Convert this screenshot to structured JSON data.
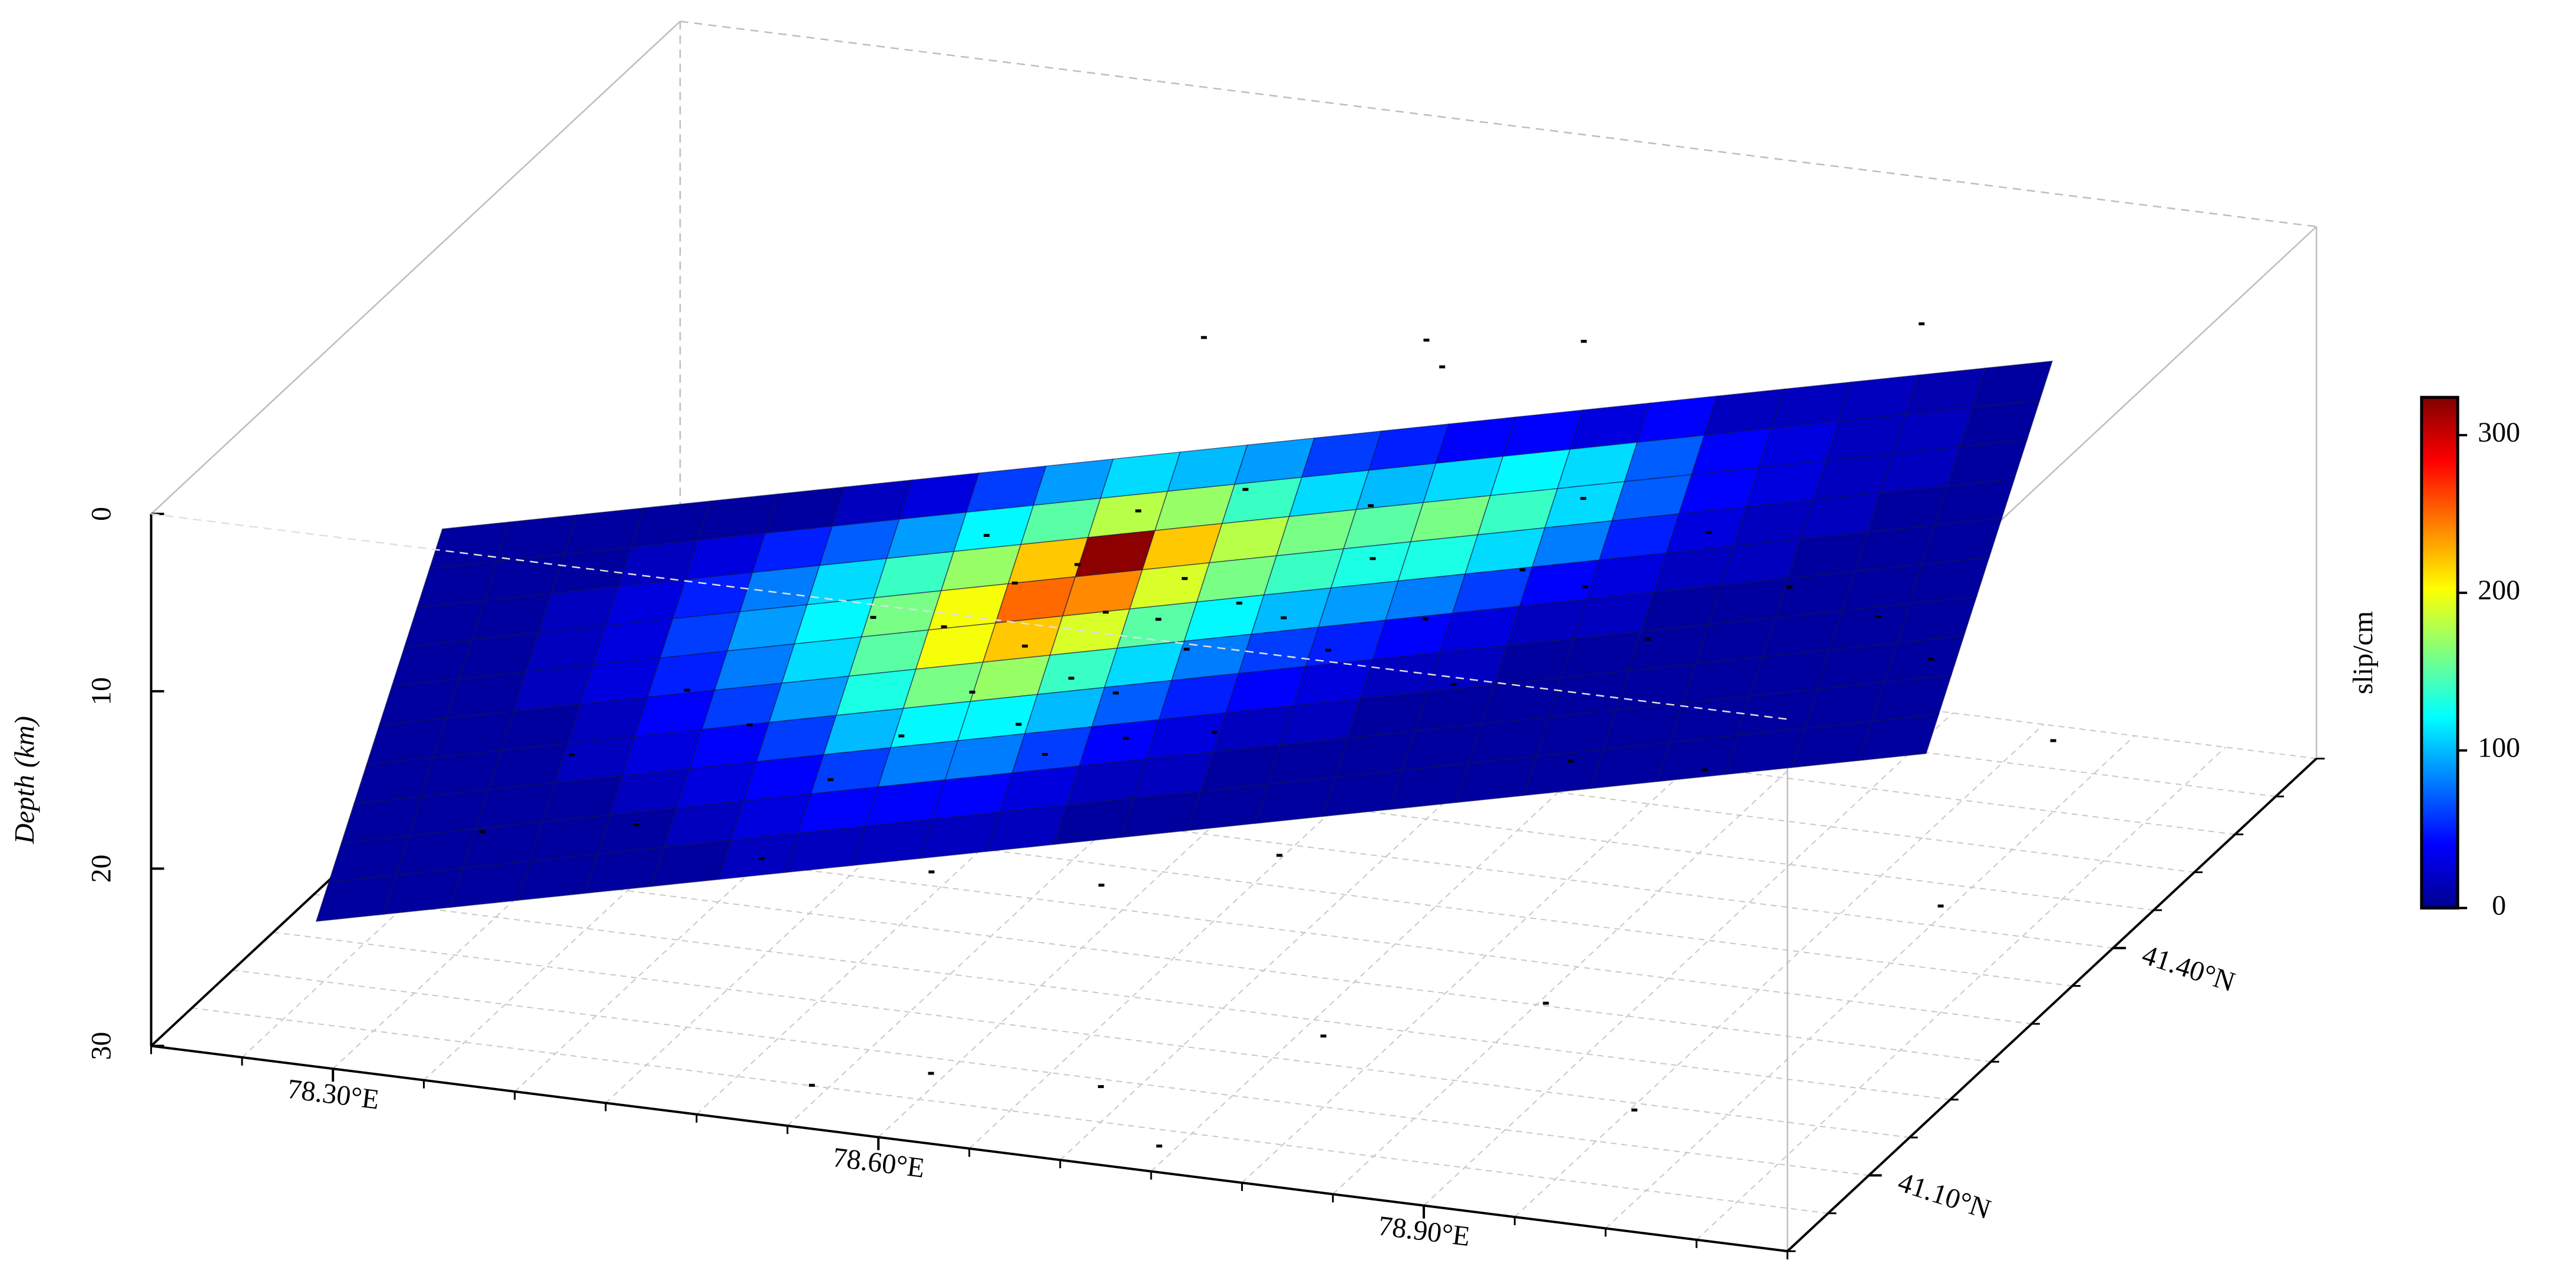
{
  "chart_data": {
    "type": "surface3d",
    "zlabel": "Depth (km)",
    "zlim": [
      0,
      30
    ],
    "zticks": [
      0,
      10,
      20,
      30
    ],
    "xlim": [
      78.2,
      79.1
    ],
    "xticks": [
      {
        "value": 78.3,
        "label": "78.30°E"
      },
      {
        "value": 78.6,
        "label": "78.60°E"
      },
      {
        "value": 78.9,
        "label": "78.90°E"
      }
    ],
    "xminorticks": [
      78.2,
      78.25,
      78.3,
      78.35,
      78.4,
      78.45,
      78.5,
      78.55,
      78.6,
      78.65,
      78.7,
      78.75,
      78.8,
      78.85,
      78.9,
      78.95,
      79.0,
      79.05,
      79.1
    ],
    "ylim": [
      41.0,
      41.65
    ],
    "yticks": [
      {
        "value": 41.1,
        "label": "41.10°N"
      },
      {
        "value": 41.4,
        "label": "41.40°N"
      }
    ],
    "yminorticks": [
      41.0,
      41.05,
      41.1,
      41.15,
      41.2,
      41.25,
      41.3,
      41.35,
      41.4,
      41.45,
      41.5,
      41.55,
      41.6,
      41.65
    ],
    "grid": true,
    "fault_corners": {
      "top_left": [
        78.349,
        41.025,
        0
      ],
      "top_right": [
        79.042,
        41.455,
        0
      ],
      "bottom_left": [
        78.289,
        41.004,
        22
      ],
      "bottom_right": [
        78.982,
        41.434,
        22
      ]
    },
    "slip": {
      "values": [
        [
          10,
          10,
          10,
          10,
          10,
          10,
          20,
          30,
          60,
          90,
          110,
          100,
          90,
          60,
          50,
          40,
          40,
          30,
          40,
          20,
          20,
          20,
          15,
          10
        ],
        [
          10,
          10,
          10,
          20,
          30,
          50,
          70,
          90,
          120,
          150,
          180,
          170,
          140,
          110,
          100,
          110,
          120,
          110,
          70,
          40,
          30,
          20,
          20,
          10
        ],
        [
          10,
          10,
          20,
          30,
          50,
          80,
          110,
          140,
          170,
          220,
          320,
          220,
          180,
          160,
          150,
          160,
          140,
          110,
          70,
          40,
          30,
          20,
          20,
          10
        ],
        [
          10,
          10,
          20,
          30,
          60,
          90,
          120,
          160,
          200,
          250,
          240,
          190,
          160,
          140,
          130,
          130,
          110,
          80,
          50,
          30,
          20,
          20,
          10,
          10
        ],
        [
          10,
          10,
          20,
          30,
          50,
          80,
          110,
          150,
          200,
          220,
          190,
          150,
          120,
          100,
          90,
          80,
          60,
          40,
          30,
          20,
          20,
          10,
          10,
          10
        ],
        [
          10,
          10,
          10,
          20,
          40,
          60,
          90,
          130,
          160,
          170,
          140,
          110,
          80,
          60,
          50,
          40,
          30,
          20,
          20,
          10,
          10,
          10,
          10,
          10
        ],
        [
          10,
          10,
          10,
          20,
          30,
          40,
          60,
          100,
          120,
          120,
          100,
          70,
          50,
          40,
          30,
          20,
          20,
          10,
          10,
          10,
          10,
          10,
          10,
          10
        ],
        [
          10,
          10,
          10,
          10,
          20,
          30,
          40,
          60,
          80,
          80,
          60,
          40,
          30,
          20,
          20,
          10,
          10,
          10,
          10,
          10,
          10,
          10,
          10,
          10
        ],
        [
          10,
          10,
          10,
          10,
          10,
          20,
          30,
          40,
          40,
          40,
          30,
          20,
          20,
          10,
          10,
          10,
          10,
          10,
          10,
          10,
          10,
          10,
          10,
          10
        ],
        [
          10,
          10,
          10,
          10,
          10,
          10,
          20,
          20,
          20,
          20,
          20,
          10,
          10,
          10,
          10,
          10,
          10,
          10,
          10,
          10,
          10,
          10,
          10,
          10
        ]
      ]
    },
    "colorbar": {
      "label": "slip/cm",
      "lim": [
        0,
        324
      ],
      "ticks": [
        0,
        100,
        200,
        300
      ],
      "colormap": "jet"
    },
    "aftershocks": {
      "color": "#000000",
      "lon": [
        78.62,
        78.64,
        78.66,
        78.6,
        78.63,
        78.67,
        78.7,
        78.58,
        78.61,
        78.65,
        78.68,
        78.72,
        78.56,
        78.59,
        78.55,
        78.62,
        78.66,
        78.74,
        78.78,
        78.82,
        78.85,
        78.8,
        78.88,
        78.76,
        78.9,
        78.94,
        78.7,
        78.52,
        78.48,
        78.45,
        78.53,
        78.57,
        78.64,
        78.69,
        78.75,
        78.84,
        78.98,
        79.0,
        78.92,
        78.86,
        78.5,
        78.58,
        78.66,
        78.74,
        78.44,
        78.4,
        78.36,
        78.74,
        78.8,
        78.6,
        78.95,
        78.7,
        78.7,
        78.8,
        78.62,
        78.9,
        78.55,
        79.05,
        78.98,
        78.75,
        79.0
      ],
      "lat": [
        41.2,
        41.19,
        41.21,
        41.18,
        41.17,
        41.22,
        41.22,
        41.16,
        41.15,
        41.18,
        41.2,
        41.23,
        41.17,
        41.19,
        41.14,
        41.16,
        41.17,
        41.24,
        41.27,
        41.3,
        41.31,
        41.26,
        41.32,
        41.25,
        41.35,
        41.36,
        41.19,
        41.12,
        41.11,
        41.1,
        41.15,
        41.2,
        41.23,
        41.25,
        41.27,
        41.33,
        41.38,
        41.4,
        41.3,
        41.27,
        41.08,
        41.11,
        41.14,
        41.18,
        41.06,
        41.07,
        41.05,
        41.38,
        41.42,
        41.4,
        41.5,
        41.45,
        41.05,
        41.1,
        41.02,
        41.15,
        41.03,
        41.3,
        41.08,
        41.01,
        41.55
      ],
      "depth": [
        6,
        8,
        9,
        10,
        11,
        7,
        8,
        12,
        13,
        12,
        10,
        9,
        9,
        7,
        14,
        15,
        14,
        11,
        10,
        8,
        9,
        13,
        12,
        6,
        7,
        10,
        14,
        16,
        13,
        11,
        8,
        5,
        4,
        3,
        4,
        5,
        12,
        15,
        18,
        17,
        19,
        20,
        21,
        20,
        17,
        14,
        18,
        1,
        0.5,
        2,
        1,
        3,
        28,
        26,
        27,
        25,
        29,
        24,
        27,
        29,
        26
      ]
    }
  }
}
